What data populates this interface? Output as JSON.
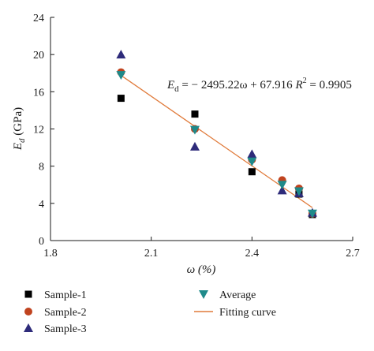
{
  "chart_data": {
    "type": "scatter",
    "xlabel": "ω (%)",
    "ylabel": "Ed (GPa)",
    "ylabel_main": "E",
    "ylabel_sub": "d",
    "ylabel_unit": " (GPa)",
    "xlim": [
      1.8,
      2.7
    ],
    "ylim": [
      0,
      24
    ],
    "xticks": [
      "1.8",
      "2.1",
      "2.4",
      "2.7"
    ],
    "yticks": [
      "0",
      "4",
      "8",
      "12",
      "16",
      "20",
      "24"
    ],
    "xtick_values": [
      1.8,
      2.1,
      2.4,
      2.7
    ],
    "ytick_values": [
      0,
      4,
      8,
      12,
      16,
      20,
      24
    ],
    "grid": false,
    "legend_placement": "bottom",
    "series": [
      {
        "name": "Sample-1",
        "marker": "square",
        "color": "#000000",
        "points": [
          [
            2.01,
            15.3
          ],
          [
            2.23,
            13.6
          ],
          [
            2.4,
            7.4
          ],
          [
            2.54,
            5.0
          ],
          [
            2.58,
            2.8
          ]
        ]
      },
      {
        "name": "Sample-2",
        "marker": "circle",
        "color": "#c0431f",
        "points": [
          [
            2.01,
            18.1
          ],
          [
            2.23,
            12.0
          ],
          [
            2.4,
            8.7
          ],
          [
            2.49,
            6.5
          ],
          [
            2.54,
            5.6
          ],
          [
            2.58,
            2.9
          ]
        ]
      },
      {
        "name": "Sample-3",
        "marker": "triangle-up",
        "color": "#2e2b7a",
        "points": [
          [
            2.01,
            20.0
          ],
          [
            2.23,
            10.1
          ],
          [
            2.4,
            9.3
          ],
          [
            2.49,
            5.4
          ],
          [
            2.54,
            5.1
          ],
          [
            2.58,
            3.0
          ]
        ]
      },
      {
        "name": "Average",
        "marker": "triangle-down",
        "color": "#1f8a8a",
        "points": [
          [
            2.01,
            17.8
          ],
          [
            2.23,
            11.9
          ],
          [
            2.4,
            8.5
          ],
          [
            2.49,
            6.0
          ],
          [
            2.54,
            5.3
          ],
          [
            2.58,
            2.9
          ]
        ]
      }
    ],
    "fit": {
      "name": "Fitting curve",
      "color": "#e07a3a",
      "slope": -24.9522,
      "intercept": 67.916,
      "x_range": [
        2.01,
        2.58
      ]
    },
    "annotation": {
      "lhs_main": "E",
      "lhs_sub": "d",
      "rhs": " = − 2495.22ω + 67.916  ",
      "r2_main": "R",
      "r2_sup": "2",
      "r2_rest": " = 0.9905"
    }
  }
}
